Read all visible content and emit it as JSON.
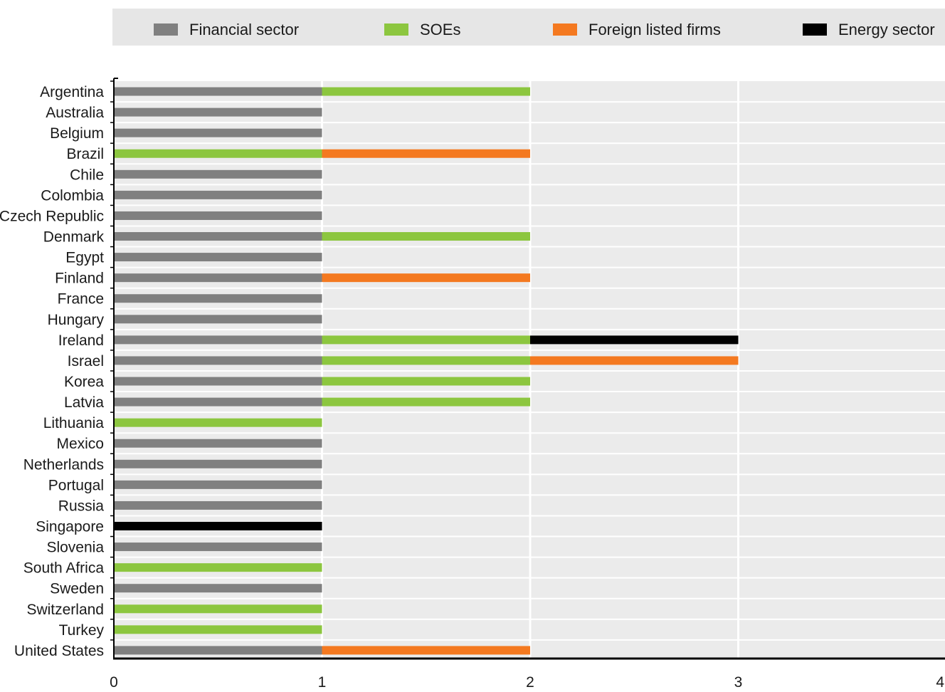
{
  "chart_data": {
    "type": "bar",
    "orientation": "horizontal",
    "stacked": true,
    "title": "",
    "xlabel": "",
    "ylabel": "",
    "xlim": [
      0,
      4
    ],
    "x_ticks": [
      "0",
      "1",
      "2",
      "3",
      "4"
    ],
    "grid": true,
    "legend_position": "top",
    "categories": [
      "Argentina",
      "Australia",
      "Belgium",
      "Brazil",
      "Chile",
      "Colombia",
      "Czech Republic",
      "Denmark",
      "Egypt",
      "Finland",
      "France",
      "Hungary",
      "Ireland",
      "Israel",
      "Korea",
      "Latvia",
      "Lithuania",
      "Mexico",
      "Netherlands",
      "Portugal",
      "Russia",
      "Singapore",
      "Slovenia",
      "South Africa",
      "Sweden",
      "Switzerland",
      "Turkey",
      "United States"
    ],
    "series": [
      {
        "name": "Financial sector",
        "color": "#808080",
        "values": [
          1,
          1,
          1,
          0,
          1,
          1,
          1,
          1,
          1,
          1,
          1,
          1,
          1,
          1,
          1,
          1,
          0,
          1,
          1,
          1,
          1,
          0,
          1,
          0,
          1,
          0,
          0,
          1
        ]
      },
      {
        "name": "SOEs",
        "color": "#8cc63f",
        "values": [
          1,
          0,
          0,
          1,
          0,
          0,
          0,
          1,
          0,
          0,
          0,
          0,
          1,
          1,
          1,
          1,
          1,
          0,
          0,
          0,
          0,
          0,
          0,
          1,
          0,
          1,
          1,
          0
        ]
      },
      {
        "name": "Foreign listed firms",
        "color": "#f47920",
        "values": [
          0,
          0,
          0,
          1,
          0,
          0,
          0,
          0,
          0,
          1,
          0,
          0,
          0,
          1,
          0,
          0,
          0,
          0,
          0,
          0,
          0,
          0,
          0,
          0,
          0,
          0,
          0,
          1
        ]
      },
      {
        "name": "Energy sector",
        "color": "#000000",
        "values": [
          0,
          0,
          0,
          0,
          0,
          0,
          0,
          0,
          0,
          0,
          0,
          0,
          1,
          0,
          0,
          0,
          0,
          0,
          0,
          0,
          0,
          1,
          0,
          0,
          0,
          0,
          0,
          0
        ]
      }
    ],
    "stack_order": [
      [
        "Financial sector",
        "SOEs"
      ],
      [
        "Financial sector"
      ],
      [
        "Financial sector"
      ],
      [
        "SOEs",
        "Foreign listed firms"
      ],
      [
        "Financial sector"
      ],
      [
        "Financial sector"
      ],
      [
        "Financial sector"
      ],
      [
        "Financial sector",
        "SOEs"
      ],
      [
        "Financial sector"
      ],
      [
        "Financial sector",
        "Foreign listed firms"
      ],
      [
        "Financial sector"
      ],
      [
        "Financial sector"
      ],
      [
        "Financial sector",
        "SOEs",
        "Energy sector"
      ],
      [
        "Financial sector",
        "SOEs",
        "Foreign listed firms"
      ],
      [
        "Financial sector",
        "SOEs"
      ],
      [
        "Financial sector",
        "SOEs"
      ],
      [
        "SOEs"
      ],
      [
        "Financial sector"
      ],
      [
        "Financial sector"
      ],
      [
        "Financial sector"
      ],
      [
        "Financial sector"
      ],
      [
        "Energy sector"
      ],
      [
        "Financial sector"
      ],
      [
        "SOEs"
      ],
      [
        "Financial sector"
      ],
      [
        "SOEs"
      ],
      [
        "SOEs"
      ],
      [
        "Financial sector",
        "Foreign listed firms"
      ]
    ]
  }
}
